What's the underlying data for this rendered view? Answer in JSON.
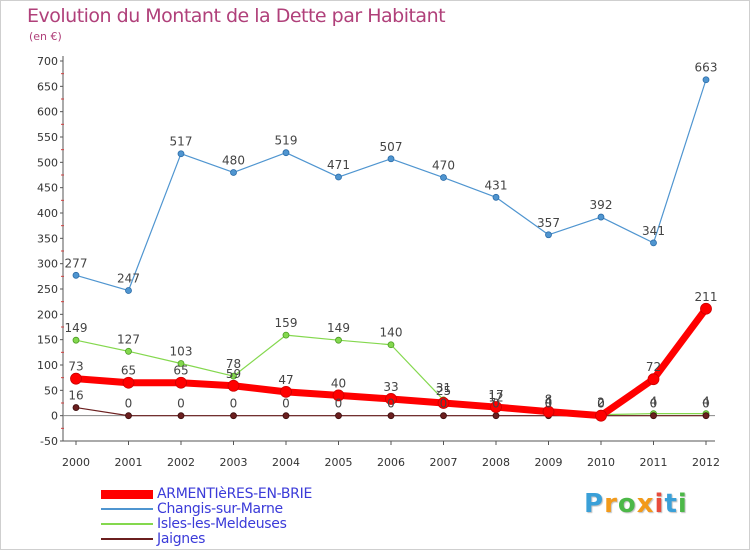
{
  "chart_data": {
    "type": "line",
    "title": "Evolution du Montant de la Dette par Habitant",
    "subtitle": "(en €)",
    "xlabel": "",
    "ylabel": "",
    "categories": [
      "2000",
      "2001",
      "2002",
      "2003",
      "2004",
      "2005",
      "2006",
      "2007",
      "2008",
      "2009",
      "2010",
      "2011",
      "2012"
    ],
    "ylim": [
      -50,
      700
    ],
    "yticks": [
      -50,
      0,
      50,
      100,
      150,
      200,
      250,
      300,
      350,
      400,
      450,
      500,
      550,
      600,
      650,
      700
    ],
    "grid": false,
    "legend_position": "bottom",
    "series": [
      {
        "name": "ARMENTIèRES-EN-BRIE",
        "color": "#ff0000",
        "values": [
          73,
          65,
          65,
          59,
          47,
          40,
          33,
          25,
          17,
          8,
          0,
          72,
          211
        ]
      },
      {
        "name": "Changis-sur-Marne",
        "color": "#4f95d0",
        "values": [
          277,
          247,
          517,
          480,
          519,
          471,
          507,
          470,
          431,
          357,
          392,
          341,
          663
        ]
      },
      {
        "name": "Isles-les-Meldeuses",
        "color": "#84d84e",
        "values": [
          149,
          127,
          103,
          78,
          159,
          149,
          140,
          31,
          12,
          4,
          2,
          4,
          4
        ]
      },
      {
        "name": "Jaignes",
        "color": "#6b1f1f",
        "values": [
          16,
          0,
          0,
          0,
          0,
          0,
          0,
          0,
          0,
          0,
          0,
          0,
          0
        ]
      }
    ]
  },
  "brand": {
    "letters": [
      "P",
      "r",
      "o",
      "x",
      "i",
      "t",
      "i"
    ],
    "colors": [
      "#3aa0d8",
      "#f29a1a",
      "#4cb848",
      "#f29a1a",
      "#e84c3d",
      "#3aa0d8",
      "#4cb848"
    ]
  }
}
